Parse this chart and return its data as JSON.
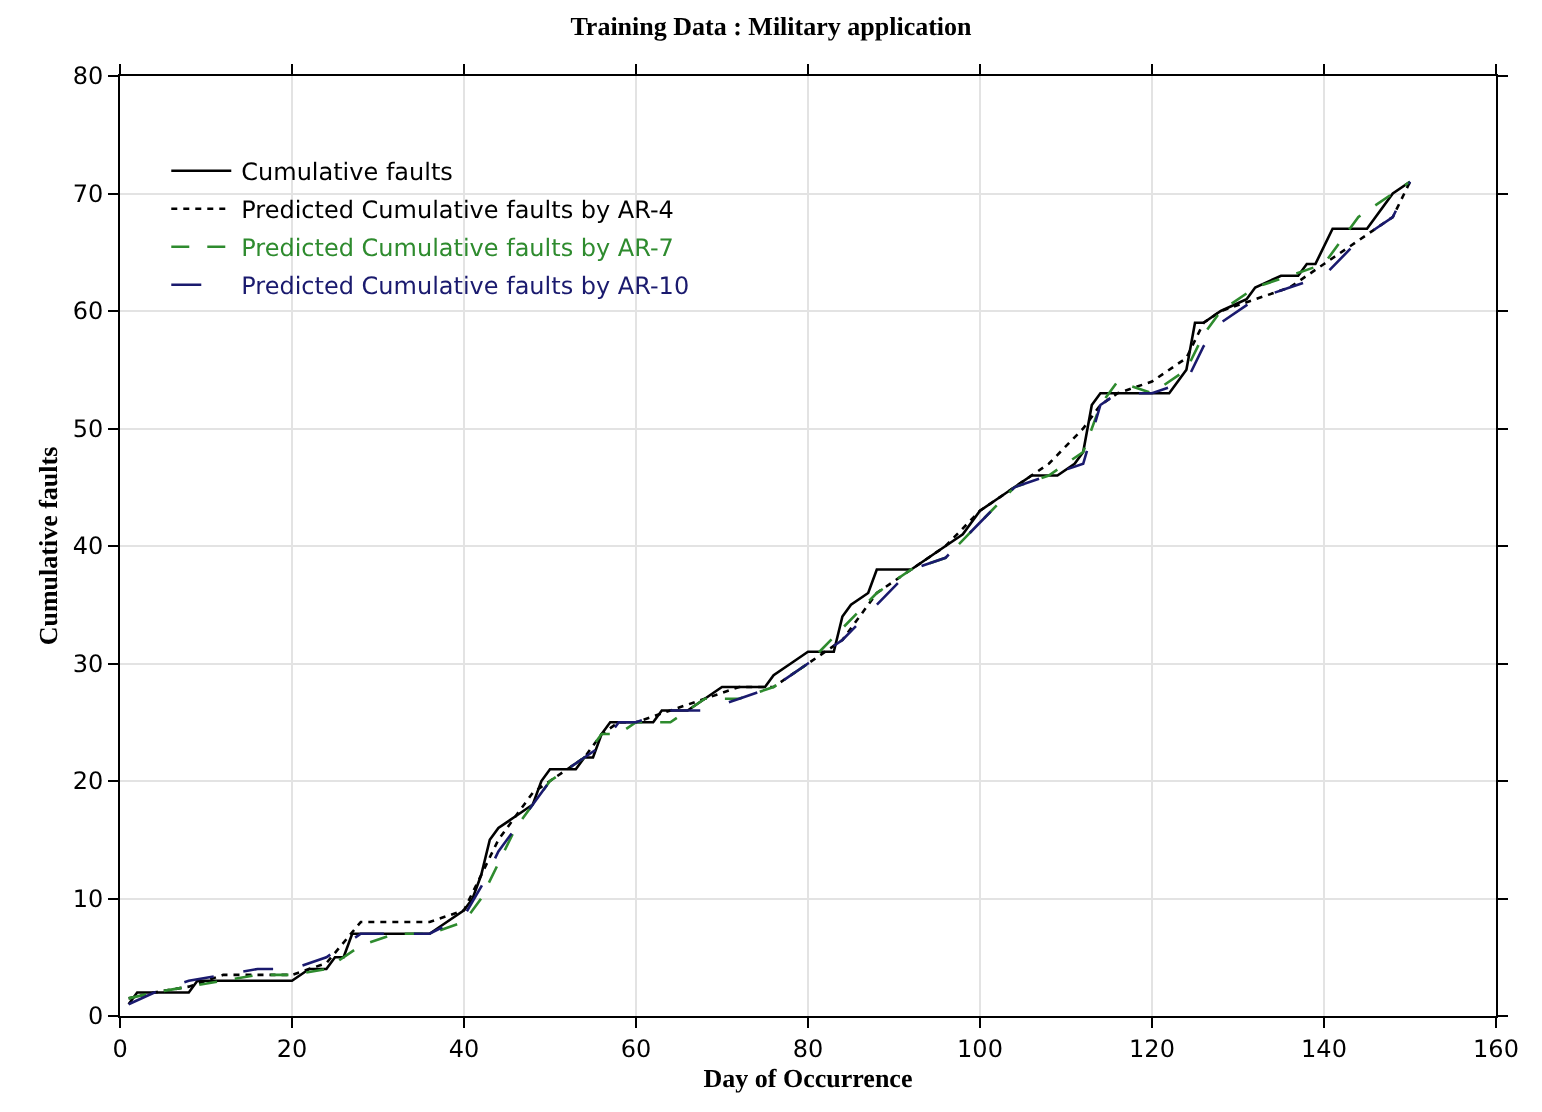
{
  "chart_data": {
    "type": "line",
    "title": "Training Data : Military application",
    "xlabel": "Day of Occurrence",
    "ylabel": "Cumulative faults",
    "xlim": [
      0,
      160
    ],
    "xticks": [
      0,
      20,
      40,
      60,
      80,
      100,
      120,
      140,
      160
    ],
    "ylim": [
      0,
      80
    ],
    "yticks": [
      0,
      10,
      20,
      30,
      40,
      50,
      60,
      70,
      80
    ],
    "grid": true,
    "legend": "top left",
    "series": [
      {
        "name": "Cumulative faults",
        "color": "#000000",
        "line_style": "solid",
        "x": [
          1,
          2,
          8,
          9,
          14,
          15,
          20,
          22,
          24,
          25,
          26,
          27,
          36,
          38,
          40,
          41,
          42,
          43,
          44,
          46,
          48,
          49,
          50,
          53,
          54,
          55,
          56,
          57,
          62,
          63,
          66,
          68,
          70,
          75,
          76,
          78,
          80,
          83,
          84,
          85,
          87,
          88,
          92,
          94,
          96,
          98,
          100,
          102,
          104,
          106,
          109,
          111,
          112,
          113,
          114,
          122,
          123,
          124,
          125,
          126,
          128,
          131,
          132,
          135,
          137,
          138,
          139,
          141,
          145,
          146,
          148,
          150
        ],
        "values": [
          1,
          2,
          2,
          3,
          3,
          3,
          3,
          4,
          4,
          5,
          5,
          7,
          7,
          8,
          9,
          10,
          12,
          15,
          16,
          17,
          18,
          20,
          21,
          21,
          22,
          22,
          24,
          25,
          25,
          26,
          26,
          27,
          28,
          28,
          29,
          30,
          31,
          31,
          34,
          35,
          36,
          38,
          38,
          39,
          40,
          41,
          43,
          44,
          45,
          46,
          46,
          47,
          48,
          52,
          53,
          53,
          54,
          55,
          59,
          59,
          60,
          61,
          62,
          63,
          63,
          64,
          64,
          67,
          67,
          68,
          70,
          71
        ]
      },
      {
        "name": "Predicted Cumulative faults by AR-4",
        "color": "#000000",
        "line_style": "dotted",
        "x": [
          1,
          4,
          8,
          12,
          16,
          20,
          24,
          28,
          32,
          36,
          40,
          42,
          44,
          46,
          48,
          50,
          52,
          54,
          56,
          58,
          60,
          64,
          68,
          72,
          76,
          80,
          84,
          88,
          92,
          96,
          100,
          104,
          108,
          112,
          114,
          116,
          120,
          124,
          126,
          128,
          132,
          136,
          140,
          144,
          148,
          150
        ],
        "values": [
          1.5,
          2,
          2.5,
          3.5,
          3.5,
          3.5,
          4.5,
          8,
          8,
          8,
          9,
          12,
          15,
          17,
          19,
          20,
          21,
          22,
          24,
          25,
          25,
          26,
          27,
          28,
          28,
          30,
          32,
          36,
          38,
          40,
          43,
          45,
          47,
          50,
          52,
          53,
          54,
          56,
          59,
          60,
          61,
          62,
          64,
          66,
          68,
          71
        ]
      },
      {
        "name": "Predicted Cumulative faults by AR-7",
        "color": "#2e8b2e",
        "line_style": "dashed",
        "x": [
          1,
          4,
          8,
          12,
          16,
          20,
          24,
          28,
          32,
          36,
          40,
          42,
          44,
          46,
          48,
          50,
          52,
          54,
          56,
          58,
          60,
          64,
          68,
          72,
          76,
          80,
          84,
          88,
          92,
          96,
          100,
          104,
          108,
          112,
          114,
          116,
          120,
          124,
          126,
          128,
          132,
          136,
          140,
          144,
          148,
          150
        ],
        "values": [
          1.5,
          2,
          2.5,
          3,
          3.5,
          3.5,
          4,
          6,
          7,
          7,
          8,
          10,
          13,
          16,
          18,
          20,
          21,
          22,
          24,
          24,
          25,
          25,
          27,
          27,
          28,
          30,
          33,
          36,
          38,
          39,
          42,
          45,
          46,
          48,
          52,
          54,
          53,
          55,
          58,
          60,
          62,
          63,
          64,
          68,
          70,
          71
        ]
      },
      {
        "name": "Predicted Cumulative faults by AR-10",
        "color": "#1a1a6e",
        "line_style": "longdash",
        "x": [
          1,
          4,
          8,
          12,
          16,
          20,
          24,
          28,
          32,
          36,
          40,
          42,
          44,
          46,
          48,
          50,
          52,
          54,
          56,
          58,
          60,
          64,
          68,
          72,
          76,
          80,
          84,
          88,
          92,
          96,
          100,
          104,
          108,
          112,
          114,
          116,
          120,
          124,
          126,
          128,
          132,
          136,
          140,
          144,
          148,
          150
        ],
        "values": [
          1,
          2,
          3,
          3.5,
          4,
          4,
          5,
          7,
          7,
          7,
          8.5,
          11,
          14,
          16,
          18,
          20,
          21,
          22,
          23,
          25,
          25,
          26,
          26,
          27,
          28,
          30,
          32,
          35,
          38,
          39,
          42,
          45,
          46,
          47,
          52,
          53,
          53,
          54,
          57,
          59,
          61,
          62,
          63,
          66,
          68,
          71
        ]
      }
    ]
  }
}
